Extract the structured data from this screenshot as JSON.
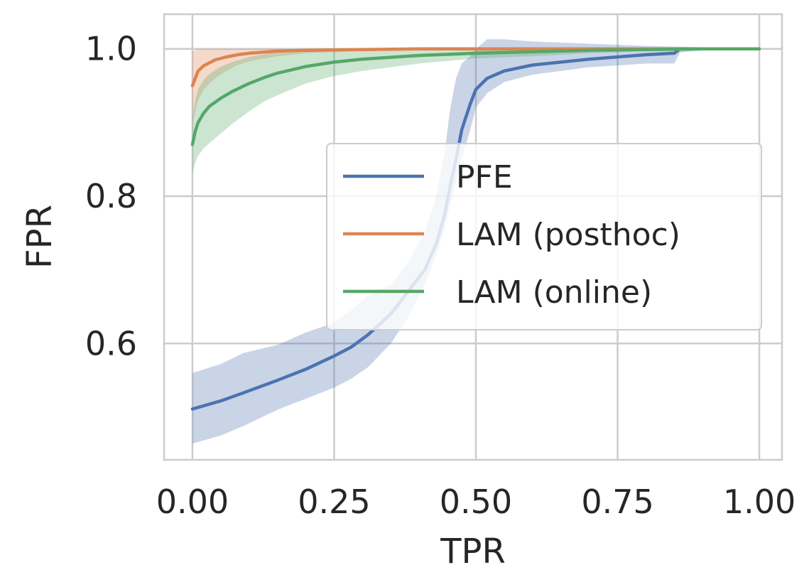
{
  "chart_data": {
    "type": "line",
    "title": "",
    "xlabel": "TPR",
    "ylabel": "FPR",
    "xlim": [
      -0.05,
      1.04
    ],
    "ylim": [
      0.442,
      1.047
    ],
    "xticks": [
      "0.00",
      "0.25",
      "0.50",
      "0.75",
      "1.00"
    ],
    "yticks": [
      "0.6",
      "0.8",
      "1.0"
    ],
    "grid": true,
    "legend_position": "center-right",
    "series": [
      {
        "name": "PFE",
        "color": "#4c72b0",
        "x": [
          0.0,
          0.05,
          0.09,
          0.15,
          0.2,
          0.25,
          0.28,
          0.31,
          0.35,
          0.38,
          0.41,
          0.43,
          0.445,
          0.455,
          0.465,
          0.475,
          0.49,
          0.5,
          0.52,
          0.55,
          0.6,
          0.7,
          0.8,
          0.85,
          0.86,
          0.9,
          0.95,
          0.99
        ],
        "y": [
          0.511,
          0.522,
          0.533,
          0.55,
          0.565,
          0.583,
          0.595,
          0.612,
          0.64,
          0.67,
          0.7,
          0.735,
          0.775,
          0.815,
          0.85,
          0.89,
          0.925,
          0.945,
          0.96,
          0.97,
          0.978,
          0.986,
          0.992,
          0.994,
          1.0,
          1.0,
          1.0,
          1.0
        ],
        "ci_low": [
          0.464,
          0.475,
          0.488,
          0.51,
          0.525,
          0.54,
          0.552,
          0.568,
          0.6,
          0.635,
          0.68,
          0.72,
          0.755,
          0.79,
          0.82,
          0.85,
          0.89,
          0.92,
          0.94,
          0.955,
          0.965,
          0.975,
          0.98,
          0.98,
          0.995,
          0.998,
          1.0,
          1.0
        ],
        "ci_high": [
          0.56,
          0.572,
          0.587,
          0.598,
          0.615,
          0.628,
          0.645,
          0.665,
          0.68,
          0.71,
          0.75,
          0.8,
          0.86,
          0.92,
          0.96,
          0.98,
          0.99,
          1.0,
          1.013,
          1.013,
          1.01,
          1.007,
          1.004,
          1.003,
          1.003,
          1.002,
          1.001,
          1.0
        ]
      },
      {
        "name": "LAM (posthoc)",
        "color": "#dd8452",
        "x": [
          0.0,
          0.01,
          0.02,
          0.04,
          0.06,
          0.08,
          0.1,
          0.15,
          0.2,
          0.3,
          0.4,
          0.5,
          0.6,
          0.8,
          1.0
        ],
        "y": [
          0.95,
          0.97,
          0.977,
          0.985,
          0.989,
          0.992,
          0.994,
          0.997,
          0.998,
          0.999,
          1.0,
          1.0,
          1.0,
          1.0,
          1.0
        ],
        "ci_low": [
          0.9,
          0.93,
          0.945,
          0.96,
          0.97,
          0.978,
          0.983,
          0.99,
          0.994,
          0.997,
          0.998,
          0.999,
          1.0,
          1.0,
          1.0
        ],
        "ci_high": [
          0.997,
          1.0,
          1.0,
          1.0,
          1.0,
          1.0,
          1.0,
          1.0,
          1.0,
          1.0,
          1.0,
          1.0,
          1.0,
          1.0,
          1.0
        ]
      },
      {
        "name": "LAM (online)",
        "color": "#55a868",
        "x": [
          0.0,
          0.005,
          0.01,
          0.02,
          0.03,
          0.05,
          0.07,
          0.1,
          0.13,
          0.15,
          0.2,
          0.25,
          0.3,
          0.4,
          0.5,
          0.6,
          0.7,
          0.8,
          0.9,
          1.0
        ],
        "y": [
          0.87,
          0.888,
          0.9,
          0.913,
          0.922,
          0.933,
          0.942,
          0.953,
          0.962,
          0.967,
          0.976,
          0.982,
          0.986,
          0.991,
          0.994,
          0.996,
          0.998,
          0.999,
          1.0,
          1.0
        ],
        "ci_low": [
          0.83,
          0.845,
          0.855,
          0.865,
          0.872,
          0.885,
          0.898,
          0.915,
          0.93,
          0.937,
          0.953,
          0.963,
          0.97,
          0.98,
          0.987,
          0.99,
          0.994,
          0.997,
          0.999,
          1.0
        ],
        "ci_high": [
          0.905,
          0.93,
          0.945,
          0.958,
          0.966,
          0.976,
          0.982,
          0.989,
          0.993,
          0.995,
          0.997,
          0.998,
          0.999,
          1.0,
          1.0,
          1.0,
          1.0,
          1.0,
          1.0,
          1.0
        ]
      }
    ]
  }
}
